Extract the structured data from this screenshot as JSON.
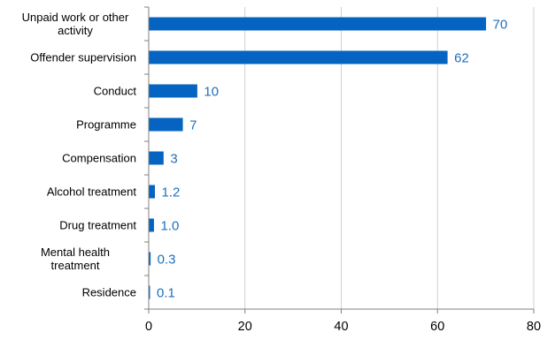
{
  "chart_data": {
    "type": "bar",
    "orientation": "horizontal",
    "categories": [
      "Unpaid work or other activity",
      "Offender supervision",
      "Conduct",
      "Programme",
      "Compensation",
      "Alcohol treatment",
      "Drug treatment",
      "Mental health treatment",
      "Residence"
    ],
    "category_lines": [
      [
        "Unpaid work or other",
        "activity"
      ],
      [
        "Offender supervision"
      ],
      [
        "Conduct"
      ],
      [
        "Programme"
      ],
      [
        "Compensation"
      ],
      [
        "Alcohol treatment"
      ],
      [
        "Drug treatment"
      ],
      [
        "Mental health",
        "treatment"
      ],
      [
        "Residence"
      ]
    ],
    "values": [
      70,
      62,
      10,
      7,
      3,
      1.2,
      1.0,
      0.3,
      0.1
    ],
    "value_labels": [
      "70",
      "62",
      "10",
      "7",
      "3",
      "1.2",
      "1.0",
      "0.3",
      "0.1"
    ],
    "title": "",
    "xlabel": "",
    "ylabel": "",
    "xlim": [
      0,
      80
    ],
    "x_ticks": [
      0,
      20,
      40,
      60,
      80
    ],
    "x_tick_labels": [
      "0",
      "20",
      "40",
      "60",
      "80"
    ],
    "grid": "vertical",
    "legend": "none",
    "colors": {
      "bar": "#0563c1",
      "value_label": "#1f6fbd",
      "grid": "#d0d0d0",
      "axis": "#808080"
    }
  }
}
